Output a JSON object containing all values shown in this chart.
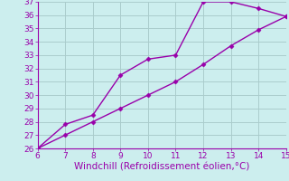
{
  "xlabel": "Windchill (Refroidissement éolien,°C)",
  "xlim": [
    6,
    15
  ],
  "ylim": [
    26,
    37
  ],
  "xticks": [
    6,
    7,
    8,
    9,
    10,
    11,
    12,
    13,
    14,
    15
  ],
  "yticks": [
    26,
    27,
    28,
    29,
    30,
    31,
    32,
    33,
    34,
    35,
    36,
    37
  ],
  "line1_x": [
    6,
    7,
    8,
    9,
    10,
    11,
    12,
    13,
    14,
    15
  ],
  "line1_y": [
    26.0,
    27.8,
    28.5,
    31.5,
    32.7,
    33.0,
    37.0,
    37.0,
    36.5,
    35.9
  ],
  "line2_x": [
    6,
    7,
    8,
    9,
    10,
    11,
    12,
    13,
    14,
    15
  ],
  "line2_y": [
    26.0,
    27.0,
    28.0,
    29.0,
    30.0,
    31.0,
    32.3,
    33.7,
    34.9,
    35.9
  ],
  "line_color": "#9900aa",
  "bg_color": "#cceeee",
  "grid_color": "#aacccc",
  "tick_color": "#9900aa",
  "label_color": "#9900aa",
  "marker": "D",
  "markersize": 2.5,
  "linewidth": 1.0,
  "xlabel_fontsize": 7.5,
  "tick_fontsize": 6.5
}
